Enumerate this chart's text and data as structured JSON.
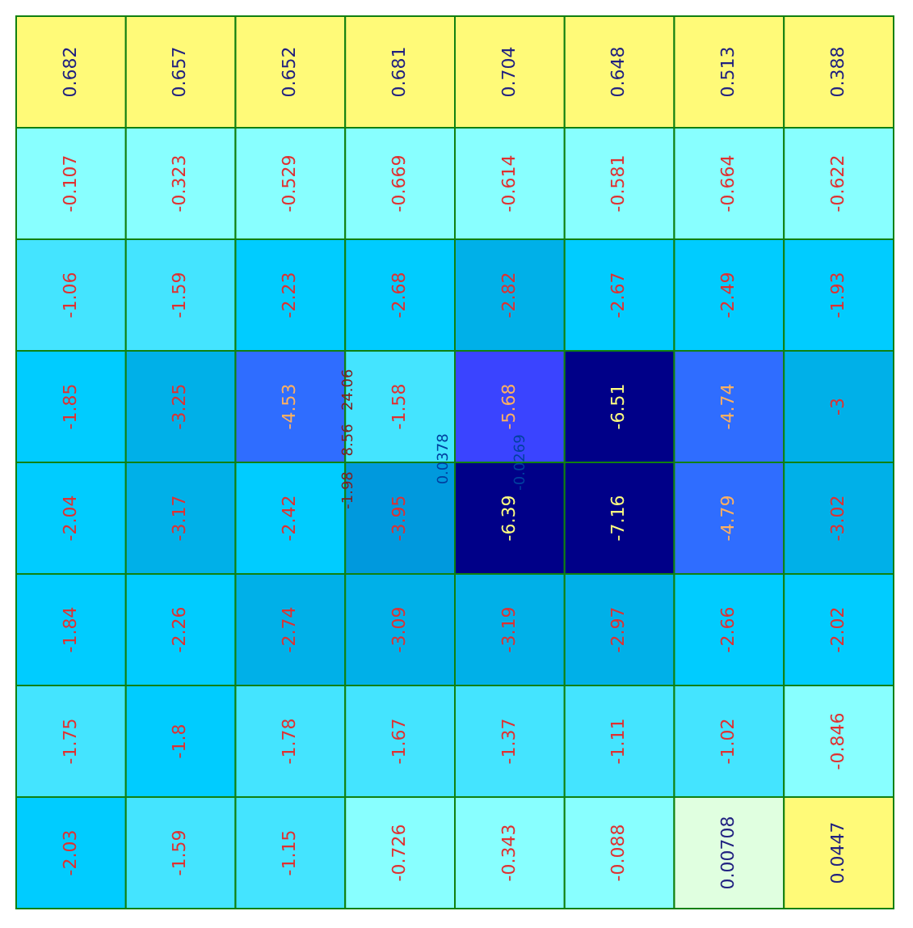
{
  "chart_data": {
    "type": "heatmap",
    "categories": [
      null,
      null,
      null,
      null,
      null,
      null,
      null,
      null
    ],
    "y_categories": [
      null,
      null,
      null,
      null,
      null,
      null,
      null,
      null
    ],
    "tick_labels": false,
    "data_labels": true,
    "cells": [
      [
        0.682,
        0.657,
        0.652,
        0.681,
        0.704,
        0.648,
        0.513,
        0.388
      ],
      [
        -0.107,
        -0.323,
        -0.529,
        -0.669,
        -0.614,
        -0.581,
        -0.664,
        -0.622
      ],
      [
        -1.06,
        -1.59,
        -2.23,
        -2.68,
        -2.82,
        -2.67,
        -2.49,
        -1.93
      ],
      [
        -1.85,
        -3.25,
        -4.53,
        -1.58,
        -5.68,
        -6.51,
        -4.74,
        -3
      ],
      [
        -2.04,
        -3.17,
        -2.42,
        -3.95,
        -6.39,
        -7.16,
        -4.79,
        -3.02
      ],
      [
        -1.84,
        -2.26,
        -2.74,
        -3.09,
        -3.19,
        -2.97,
        -2.66,
        -2.02
      ],
      [
        -1.75,
        -1.8,
        -1.78,
        -1.67,
        -1.37,
        -1.11,
        -1.02,
        -0.846
      ],
      [
        -2.03,
        -1.59,
        -1.15,
        -0.726,
        -0.343,
        -0.088,
        0.00708,
        0.0447
      ]
    ],
    "annotations": [
      "-1.98",
      "8.56",
      "24.06",
      "0.0378",
      "-0.0269"
    ]
  }
}
